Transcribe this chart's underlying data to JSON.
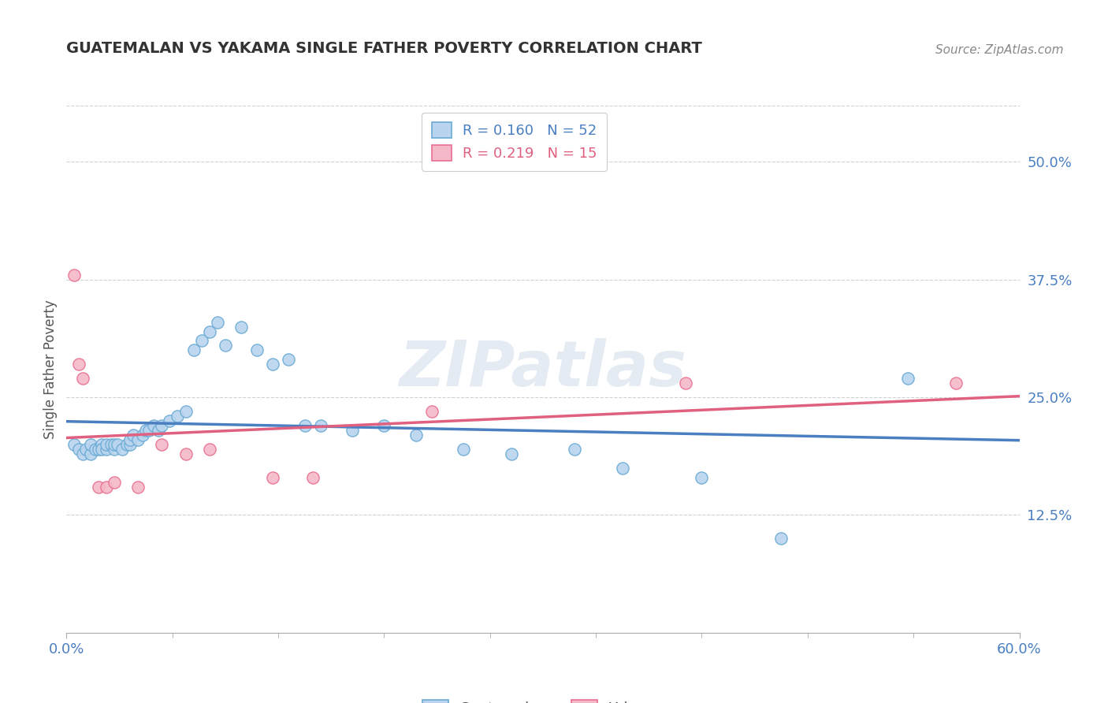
{
  "title": "GUATEMALAN VS YAKAMA SINGLE FATHER POVERTY CORRELATION CHART",
  "source": "Source: ZipAtlas.com",
  "ylabel": "Single Father Poverty",
  "xmin": 0.0,
  "xmax": 0.6,
  "ymin": 0.0,
  "ymax": 0.56,
  "yticks": [
    0.125,
    0.25,
    0.375,
    0.5
  ],
  "ytick_labels": [
    "12.5%",
    "25.0%",
    "37.5%",
    "50.0%"
  ],
  "xtick_vals": [
    0.0,
    0.6
  ],
  "xtick_labels": [
    "0.0%",
    "60.0%"
  ],
  "guatemalan_fill": "#b8d4ee",
  "guatemalan_edge": "#6aaad4",
  "yakama_fill": "#f4b8c8",
  "yakama_edge": "#e87090",
  "guatemalan_line_color": "#4a7fc1",
  "yakama_line_color": "#e06080",
  "legend_line1": "R = 0.160   N = 52",
  "legend_line2": "R = 0.219   N = 15",
  "watermark": "ZIPatlas",
  "background_color": "#ffffff",
  "grid_color": "#d0d0d0",
  "guatemalan_x": [
    0.005,
    0.008,
    0.01,
    0.012,
    0.015,
    0.015,
    0.018,
    0.02,
    0.022,
    0.022,
    0.025,
    0.025,
    0.028,
    0.03,
    0.03,
    0.032,
    0.035,
    0.038,
    0.04,
    0.04,
    0.042,
    0.045,
    0.048,
    0.05,
    0.052,
    0.055,
    0.058,
    0.06,
    0.065,
    0.07,
    0.075,
    0.08,
    0.085,
    0.09,
    0.095,
    0.1,
    0.11,
    0.12,
    0.13,
    0.14,
    0.15,
    0.16,
    0.18,
    0.2,
    0.22,
    0.25,
    0.28,
    0.32,
    0.35,
    0.4,
    0.45,
    0.53
  ],
  "guatemalan_y": [
    0.2,
    0.195,
    0.19,
    0.195,
    0.19,
    0.2,
    0.195,
    0.195,
    0.2,
    0.195,
    0.195,
    0.2,
    0.2,
    0.195,
    0.2,
    0.2,
    0.195,
    0.2,
    0.2,
    0.205,
    0.21,
    0.205,
    0.21,
    0.215,
    0.215,
    0.22,
    0.215,
    0.22,
    0.225,
    0.23,
    0.235,
    0.3,
    0.31,
    0.32,
    0.33,
    0.305,
    0.325,
    0.3,
    0.285,
    0.29,
    0.22,
    0.22,
    0.215,
    0.22,
    0.21,
    0.195,
    0.19,
    0.195,
    0.175,
    0.165,
    0.1,
    0.27
  ],
  "yakama_x": [
    0.005,
    0.008,
    0.01,
    0.02,
    0.025,
    0.03,
    0.045,
    0.06,
    0.075,
    0.09,
    0.13,
    0.155,
    0.23,
    0.39,
    0.56
  ],
  "yakama_y": [
    0.38,
    0.285,
    0.27,
    0.155,
    0.155,
    0.16,
    0.155,
    0.2,
    0.19,
    0.195,
    0.165,
    0.165,
    0.235,
    0.265,
    0.265
  ]
}
